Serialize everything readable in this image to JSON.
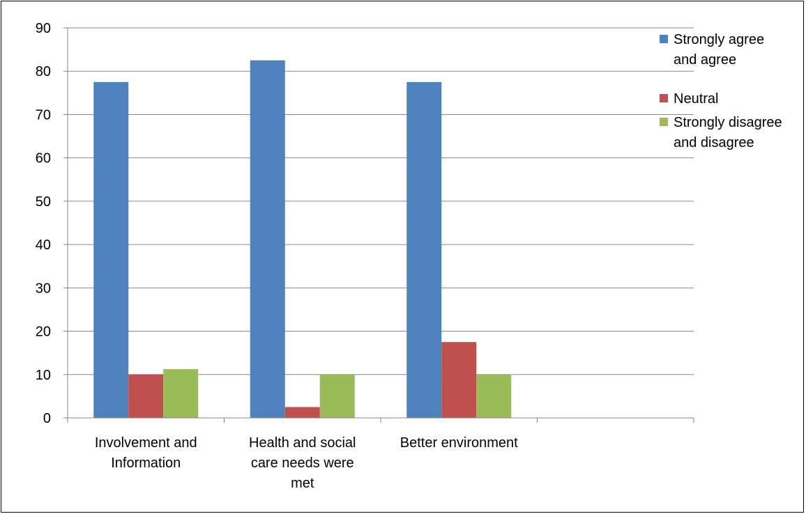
{
  "chart_data": {
    "type": "bar",
    "title": "",
    "xlabel": "",
    "ylabel": "",
    "ylim": [
      0,
      90
    ],
    "yticks": [
      0,
      10,
      20,
      30,
      40,
      50,
      60,
      70,
      80,
      90
    ],
    "grid": true,
    "legend_position": "top-right",
    "categories": [
      [
        "Involvement and",
        "Information"
      ],
      [
        "Health and social",
        "care needs were",
        "met"
      ],
      [
        "Better environment"
      ],
      []
    ],
    "series": [
      {
        "name": [
          "Strongly agree",
          "and agree"
        ],
        "color": "#4F81BD",
        "values": [
          77.5,
          82.5,
          77.5,
          null
        ]
      },
      {
        "name": [
          "Neutral"
        ],
        "color": "#C0504D",
        "values": [
          10,
          2.5,
          17.5,
          null
        ]
      },
      {
        "name": [
          "Strongly disagree",
          "and disagree"
        ],
        "color": "#9BBB59",
        "values": [
          11.25,
          10,
          10,
          null
        ]
      }
    ]
  }
}
